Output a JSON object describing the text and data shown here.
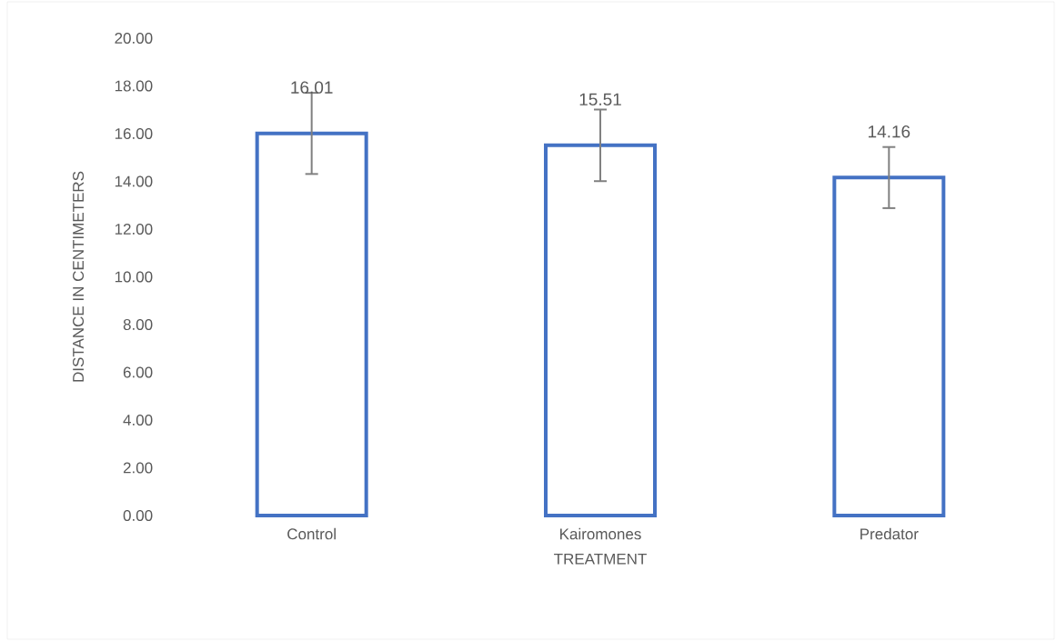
{
  "chart_data": {
    "type": "bar",
    "xlabel": "TREATMENT",
    "ylabel": "DISTANCE IN CENTIMETERS",
    "categories": [
      "Control",
      "Kairomones",
      "Predator"
    ],
    "values": [
      16.01,
      15.51,
      14.16
    ],
    "errors": [
      1.7,
      1.5,
      1.28
    ],
    "color": "#4472c4",
    "ylim": [
      0,
      20
    ],
    "yticks": [
      {
        "value": 0,
        "label": "0.00"
      },
      {
        "value": 2,
        "label": "2.00"
      },
      {
        "value": 4,
        "label": "4.00"
      },
      {
        "value": 6,
        "label": "6.00"
      },
      {
        "value": 8,
        "label": "8.00"
      },
      {
        "value": 10,
        "label": "10.00"
      },
      {
        "value": 12,
        "label": "12.00"
      },
      {
        "value": 14,
        "label": "14.00"
      },
      {
        "value": 16,
        "label": "16.00"
      },
      {
        "value": 18,
        "label": "18.00"
      },
      {
        "value": 20,
        "label": "20.00"
      }
    ],
    "data_labels": true
  }
}
